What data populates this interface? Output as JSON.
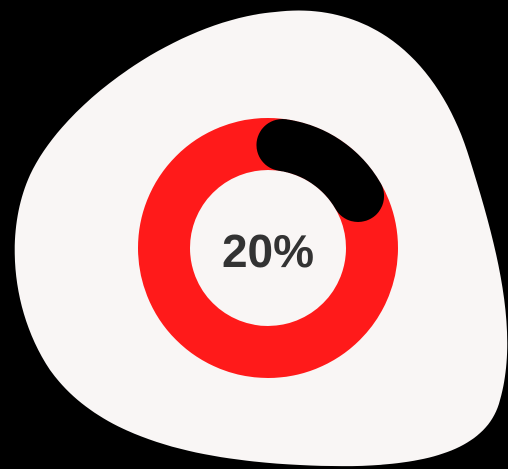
{
  "progress": {
    "value": 0.2,
    "label": "20%"
  },
  "colors": {
    "background": "#000000",
    "blob": "#f9f6f5",
    "track": "#ff1a1a",
    "indicator": "#000000",
    "text": "#333333"
  }
}
